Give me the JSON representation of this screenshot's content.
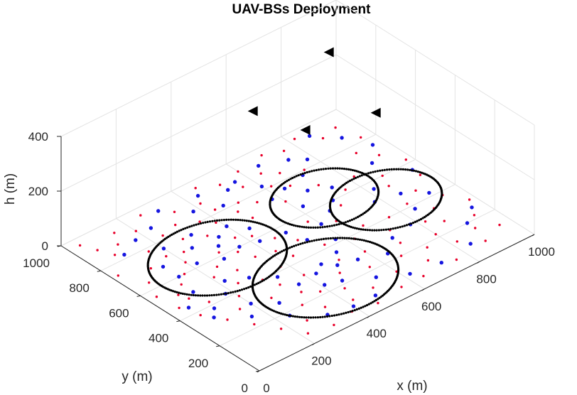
{
  "chart_data": {
    "type": "scatter",
    "title": "UAV-BSs Deployment",
    "xlabel": "x (m)",
    "ylabel": "y (m)",
    "zlabel": "h (m)",
    "xlim": [
      0,
      1000
    ],
    "ylim": [
      0,
      1000
    ],
    "zlim": [
      0,
      400
    ],
    "xticks": [
      "0",
      "200",
      "400",
      "600",
      "800",
      "1000"
    ],
    "yticks": [
      "0",
      "200",
      "400",
      "600",
      "800",
      "1000"
    ],
    "zticks": [
      "0",
      "200",
      "400"
    ],
    "grid": true,
    "colors": {
      "users_red": "#e8002a",
      "users_blue": "#1515e0",
      "uav": "#000000",
      "coverage": "#000000"
    },
    "uavs": [
      {
        "x": 560,
        "y": 810,
        "h": 300
      },
      {
        "x": 905,
        "y": 905,
        "h": 300
      },
      {
        "x": 805,
        "y": 530,
        "h": 300
      },
      {
        "x": 650,
        "y": 670,
        "h": 250
      }
    ],
    "coverage_circles": [
      {
        "center_x": 280,
        "center_y": 600,
        "radius": 205
      },
      {
        "center_x": 435,
        "center_y": 270,
        "radius": 215
      },
      {
        "center_x": 690,
        "center_y": 630,
        "radius": 160
      },
      {
        "center_x": 810,
        "center_y": 485,
        "radius": 165
      }
    ],
    "users_red": [
      [
        120,
        560
      ],
      [
        160,
        600
      ],
      [
        200,
        650
      ],
      [
        250,
        560
      ],
      [
        300,
        620
      ],
      [
        340,
        580
      ],
      [
        380,
        650
      ],
      [
        230,
        700
      ],
      [
        180,
        720
      ],
      [
        270,
        760
      ],
      [
        330,
        720
      ],
      [
        390,
        760
      ],
      [
        80,
        840
      ],
      [
        60,
        900
      ],
      [
        120,
        880
      ],
      [
        150,
        940
      ],
      [
        40,
        960
      ],
      [
        200,
        900
      ],
      [
        260,
        960
      ],
      [
        340,
        900
      ],
      [
        420,
        880
      ],
      [
        460,
        960
      ],
      [
        520,
        920
      ],
      [
        600,
        940
      ],
      [
        640,
        880
      ],
      [
        700,
        960
      ],
      [
        760,
        930
      ],
      [
        820,
        960
      ],
      [
        880,
        900
      ],
      [
        940,
        920
      ],
      [
        960,
        820
      ],
      [
        900,
        760
      ],
      [
        940,
        700
      ],
      [
        980,
        620
      ],
      [
        960,
        520
      ],
      [
        900,
        460
      ],
      [
        940,
        380
      ],
      [
        980,
        300
      ],
      [
        940,
        220
      ],
      [
        900,
        160
      ],
      [
        960,
        120
      ],
      [
        880,
        80
      ],
      [
        820,
        140
      ],
      [
        760,
        60
      ],
      [
        700,
        120
      ],
      [
        640,
        60
      ],
      [
        600,
        140
      ],
      [
        560,
        60
      ],
      [
        500,
        120
      ],
      [
        460,
        40
      ],
      [
        420,
        110
      ],
      [
        380,
        60
      ],
      [
        340,
        140
      ],
      [
        300,
        40
      ],
      [
        260,
        120
      ],
      [
        220,
        60
      ],
      [
        180,
        140
      ],
      [
        140,
        220
      ],
      [
        100,
        300
      ],
      [
        60,
        380
      ],
      [
        40,
        460
      ],
      [
        80,
        520
      ],
      [
        380,
        220
      ],
      [
        440,
        180
      ],
      [
        480,
        260
      ],
      [
        520,
        320
      ],
      [
        400,
        330
      ],
      [
        340,
        260
      ],
      [
        300,
        200
      ],
      [
        560,
        220
      ],
      [
        600,
        300
      ],
      [
        620,
        380
      ],
      [
        540,
        420
      ],
      [
        500,
        500
      ],
      [
        460,
        560
      ],
      [
        420,
        620
      ],
      [
        480,
        700
      ],
      [
        540,
        760
      ],
      [
        600,
        700
      ],
      [
        660,
        760
      ],
      [
        720,
        700
      ],
      [
        760,
        620
      ],
      [
        700,
        560
      ],
      [
        640,
        500
      ],
      [
        580,
        560
      ],
      [
        760,
        400
      ],
      [
        840,
        420
      ],
      [
        860,
        540
      ],
      [
        880,
        600
      ],
      [
        820,
        660
      ],
      [
        740,
        800
      ],
      [
        680,
        840
      ],
      [
        620,
        800
      ],
      [
        560,
        860
      ],
      [
        360,
        800
      ],
      [
        300,
        840
      ],
      [
        240,
        820
      ],
      [
        160,
        780
      ],
      [
        110,
        700
      ],
      [
        60,
        640
      ],
      [
        20,
        740
      ],
      [
        30,
        560
      ],
      [
        470,
        760
      ],
      [
        430,
        820
      ],
      [
        500,
        800
      ],
      [
        820,
        300
      ],
      [
        700,
        260
      ],
      [
        660,
        200
      ],
      [
        740,
        180
      ],
      [
        800,
        220
      ],
      [
        860,
        260
      ],
      [
        880,
        340
      ],
      [
        720,
        340
      ],
      [
        680,
        420
      ],
      [
        300,
        400
      ],
      [
        240,
        440
      ],
      [
        200,
        380
      ],
      [
        160,
        320
      ],
      [
        120,
        420
      ],
      [
        90,
        480
      ],
      [
        260,
        300
      ],
      [
        320,
        340
      ],
      [
        380,
        420
      ],
      [
        440,
        440
      ],
      [
        420,
        500
      ],
      [
        360,
        520
      ],
      [
        280,
        500
      ],
      [
        210,
        520
      ]
    ],
    "users_blue": [
      [
        140,
        600
      ],
      [
        220,
        620
      ],
      [
        290,
        580
      ],
      [
        320,
        650
      ],
      [
        360,
        600
      ],
      [
        260,
        700
      ],
      [
        200,
        760
      ],
      [
        140,
        680
      ],
      [
        300,
        760
      ],
      [
        350,
        690
      ],
      [
        100,
        820
      ],
      [
        170,
        860
      ],
      [
        240,
        880
      ],
      [
        310,
        940
      ],
      [
        380,
        860
      ],
      [
        440,
        920
      ],
      [
        560,
        900
      ],
      [
        660,
        920
      ],
      [
        740,
        880
      ],
      [
        860,
        940
      ],
      [
        920,
        860
      ],
      [
        960,
        760
      ],
      [
        900,
        680
      ],
      [
        960,
        560
      ],
      [
        920,
        420
      ],
      [
        960,
        260
      ],
      [
        900,
        200
      ],
      [
        840,
        100
      ],
      [
        720,
        80
      ],
      [
        620,
        100
      ],
      [
        540,
        160
      ],
      [
        480,
        80
      ],
      [
        400,
        80
      ],
      [
        320,
        100
      ],
      [
        240,
        180
      ],
      [
        160,
        260
      ],
      [
        80,
        340
      ],
      [
        60,
        440
      ],
      [
        120,
        500
      ],
      [
        410,
        240
      ],
      [
        460,
        220
      ],
      [
        500,
        300
      ],
      [
        430,
        310
      ],
      [
        360,
        300
      ],
      [
        470,
        340
      ],
      [
        540,
        360
      ],
      [
        580,
        420
      ],
      [
        520,
        480
      ],
      [
        600,
        520
      ],
      [
        660,
        560
      ],
      [
        700,
        600
      ],
      [
        740,
        660
      ],
      [
        680,
        700
      ],
      [
        620,
        640
      ],
      [
        640,
        760
      ],
      [
        720,
        780
      ],
      [
        780,
        840
      ],
      [
        820,
        560
      ],
      [
        780,
        500
      ],
      [
        860,
        480
      ],
      [
        840,
        380
      ],
      [
        780,
        320
      ],
      [
        700,
        300
      ],
      [
        640,
        240
      ],
      [
        560,
        280
      ],
      [
        500,
        560
      ],
      [
        440,
        660
      ],
      [
        400,
        720
      ],
      [
        460,
        820
      ],
      [
        520,
        880
      ],
      [
        600,
        820
      ],
      [
        580,
        740
      ],
      [
        280,
        440
      ],
      [
        220,
        480
      ],
      [
        180,
        420
      ],
      [
        340,
        380
      ],
      [
        260,
        260
      ],
      [
        200,
        320
      ],
      [
        110,
        380
      ],
      [
        420,
        580
      ]
    ]
  }
}
